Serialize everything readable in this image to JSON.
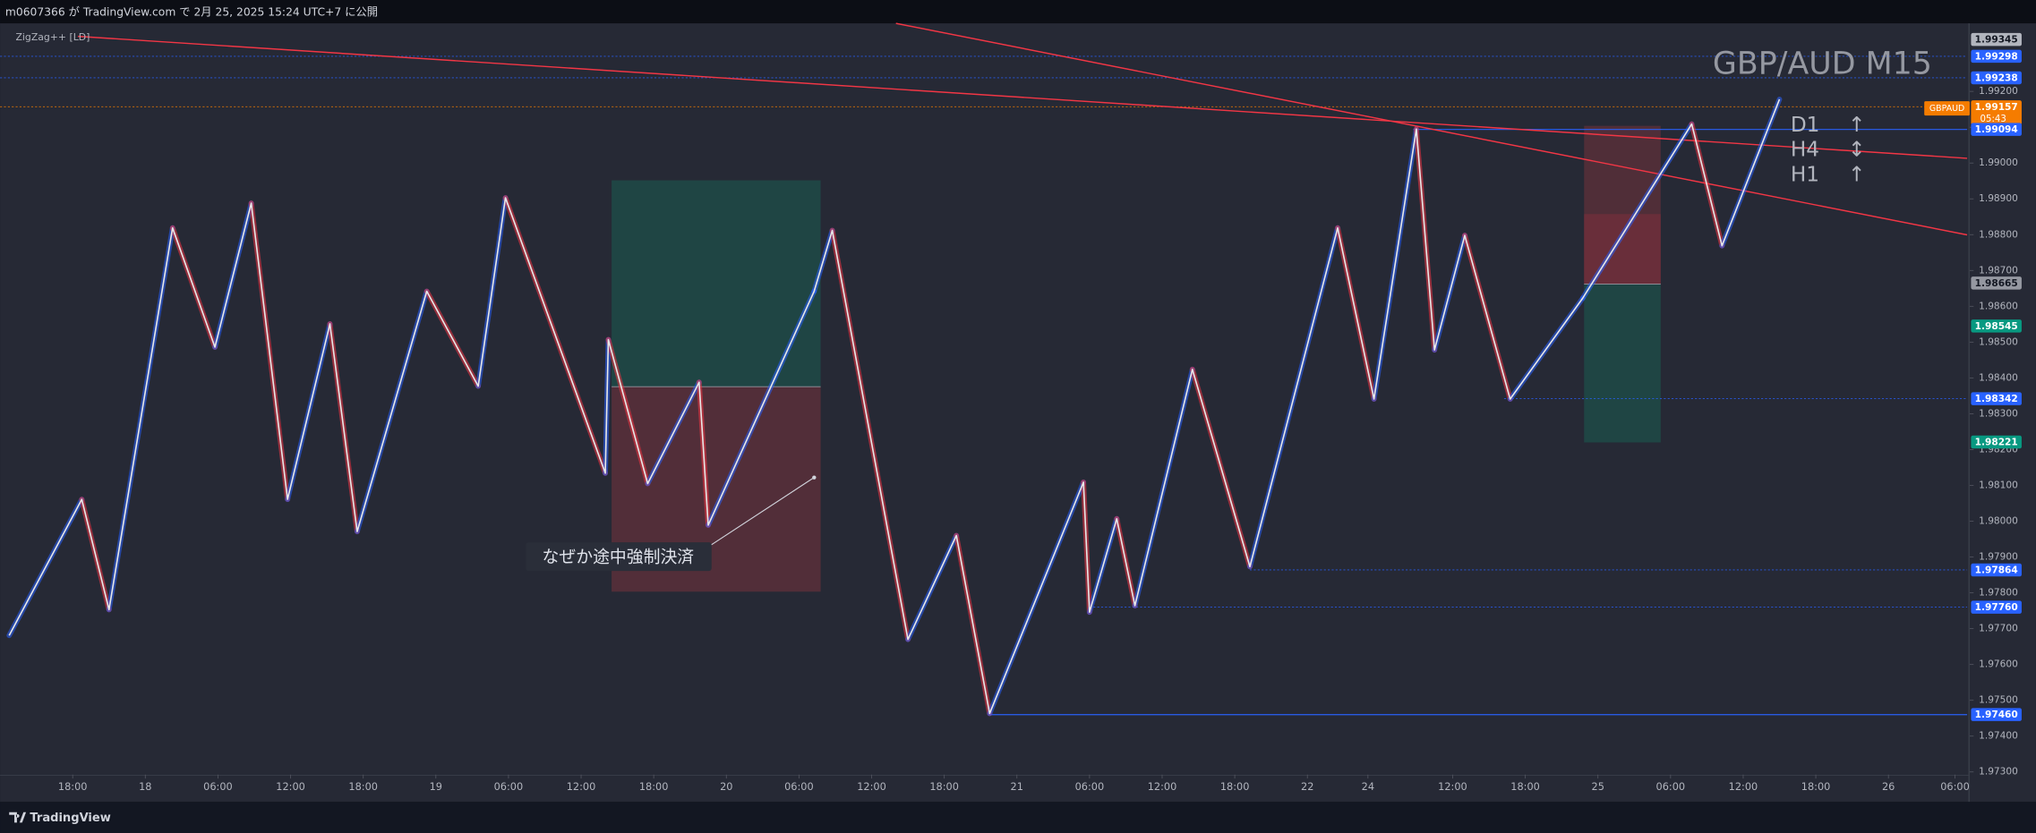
{
  "header": {
    "publisher": "m0607366 が TradingView.com で 2月 25, 2025 15:24 UTC+7 に公開"
  },
  "indicator": "ZigZag++ [LD]",
  "annotation": "なぜか途中強制決済",
  "symbol_tag": "GBPAUD",
  "countdown": "05:43",
  "timeframes": [
    {
      "label": "D1",
      "arrow": "↑"
    },
    {
      "label": "H4",
      "arrow": "↕"
    },
    {
      "label": "H1",
      "arrow": "↑"
    }
  ],
  "footer": "TradingView",
  "chart_data": {
    "type": "line",
    "title": "GBP/AUD M15",
    "color": "#e8e8e8",
    "up_color": "#2962ff",
    "down_color": "#f23645",
    "x": [
      3,
      27,
      36,
      57,
      71,
      83,
      95,
      109,
      118,
      141,
      158,
      167,
      200,
      201,
      214,
      231,
      234,
      269,
      275,
      300,
      316,
      327,
      358,
      360,
      369,
      375,
      394,
      413,
      442,
      454,
      468,
      474,
      484,
      499,
      523,
      559,
      569,
      588
    ],
    "values": [
      1.97681,
      1.98061,
      1.97753,
      1.98819,
      1.98486,
      1.98888,
      1.98061,
      1.98551,
      1.97971,
      1.98642,
      1.98377,
      1.98903,
      1.98134,
      1.98507,
      1.98105,
      1.98388,
      1.97989,
      1.98642,
      1.98812,
      1.9767,
      1.9796,
      1.97463,
      1.98109,
      1.97746,
      1.98007,
      1.97764,
      1.98424,
      1.97873,
      1.98819,
      1.98341,
      1.99095,
      1.98478,
      1.98798,
      1.98341,
      1.98623,
      1.99109,
      1.98769,
      1.99178
    ],
    "xlim": [
      0,
      650
    ],
    "xticks": [
      {
        "value": 24,
        "label": "18:00"
      },
      {
        "value": 48,
        "label": "18"
      },
      {
        "value": 72,
        "label": "06:00"
      },
      {
        "value": 96,
        "label": "12:00"
      },
      {
        "value": 120,
        "label": "18:00"
      },
      {
        "value": 144,
        "label": "19"
      },
      {
        "value": 168,
        "label": "06:00"
      },
      {
        "value": 192,
        "label": "12:00"
      },
      {
        "value": 216,
        "label": "18:00"
      },
      {
        "value": 240,
        "label": "20"
      },
      {
        "value": 264,
        "label": "06:00"
      },
      {
        "value": 288,
        "label": "12:00"
      },
      {
        "value": 312,
        "label": "18:00"
      },
      {
        "value": 336,
        "label": "21"
      },
      {
        "value": 360,
        "label": "06:00"
      },
      {
        "value": 384,
        "label": "12:00"
      },
      {
        "value": 408,
        "label": "18:00"
      },
      {
        "value": 432,
        "label": "22"
      },
      {
        "value": 452,
        "label": "24"
      },
      {
        "value": 480,
        "label": "12:00"
      },
      {
        "value": 504,
        "label": "18:00"
      },
      {
        "value": 528,
        "label": "25"
      },
      {
        "value": 552,
        "label": "06:00"
      },
      {
        "value": 576,
        "label": "12:00"
      },
      {
        "value": 600,
        "label": "18:00"
      },
      {
        "value": 624,
        "label": "26"
      },
      {
        "value": 646,
        "label": "06:00"
      }
    ],
    "ylim": [
      1.9722,
      1.9939
    ],
    "yticks": [
      {
        "value": 1.992,
        "label": "1.99200"
      },
      {
        "value": 1.991,
        "label": "1.99100"
      },
      {
        "value": 1.99,
        "label": "1.99000"
      },
      {
        "value": 1.989,
        "label": "1.98900"
      },
      {
        "value": 1.988,
        "label": "1.98800"
      },
      {
        "value": 1.987,
        "label": "1.98700"
      },
      {
        "value": 1.986,
        "label": "1.98600"
      },
      {
        "value": 1.985,
        "label": "1.98500"
      },
      {
        "value": 1.984,
        "label": "1.98400"
      },
      {
        "value": 1.983,
        "label": "1.98300"
      },
      {
        "value": 1.982,
        "label": "1.98200"
      },
      {
        "value": 1.981,
        "label": "1.98100"
      },
      {
        "value": 1.98,
        "label": "1.98000"
      },
      {
        "value": 1.979,
        "label": "1.97900"
      },
      {
        "value": 1.978,
        "label": "1.97800"
      },
      {
        "value": 1.977,
        "label": "1.97700"
      },
      {
        "value": 1.976,
        "label": "1.97600"
      },
      {
        "value": 1.975,
        "label": "1.97500"
      },
      {
        "value": 1.974,
        "label": "1.97400"
      },
      {
        "value": 1.973,
        "label": "1.97300"
      }
    ],
    "grid": false,
    "price_tags": [
      {
        "value": 1.99345,
        "label": "1.99345",
        "color": "#b2b5be"
      },
      {
        "value": 1.99298,
        "label": "1.99298",
        "color": "#2962ff",
        "line": "dotted",
        "from": 0
      },
      {
        "value": 1.99238,
        "label": "1.99238",
        "color": "#2962ff",
        "line": "dotted",
        "from": 0
      },
      {
        "value": 1.99157,
        "label": "1.99157",
        "color": "#f57c00",
        "line": "dotted",
        "from": 0
      },
      {
        "value": 1.99094,
        "label": "1.99094",
        "color": "#2962ff",
        "line": "solid",
        "from": 467
      },
      {
        "value": 1.98665,
        "label": "1.98665",
        "color": "#9598a1"
      },
      {
        "value": 1.98545,
        "label": "1.98545",
        "color": "#089981"
      },
      {
        "value": 1.98342,
        "label": "1.98342",
        "color": "#2962ff",
        "line": "dotted",
        "from": 497
      },
      {
        "value": 1.98221,
        "label": "1.98221",
        "color": "#089981"
      },
      {
        "value": 1.97864,
        "label": "1.97864",
        "color": "#2962ff",
        "line": "dotted",
        "from": 413
      },
      {
        "value": 1.9776,
        "label": "1.97760",
        "color": "#2962ff",
        "line": "dotted",
        "from": 360
      },
      {
        "value": 1.9746,
        "label": "1.97460",
        "color": "#2962ff",
        "line": "solid",
        "from": 327
      }
    ]
  }
}
